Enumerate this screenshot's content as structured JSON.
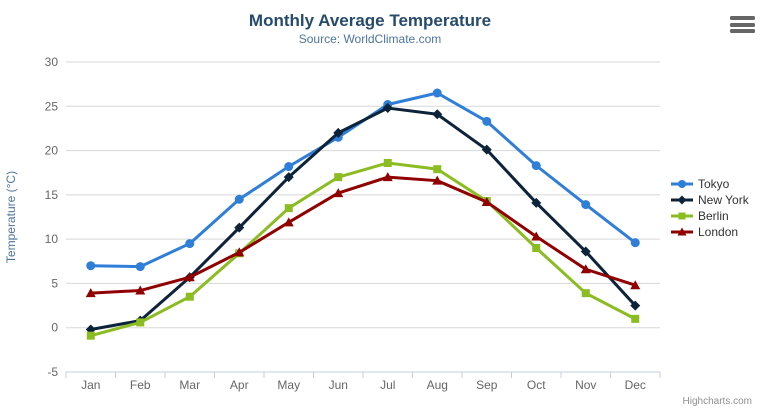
{
  "title": "Monthly Average Temperature",
  "subtitle": "Source: WorldClimate.com",
  "credits": "Highcharts.com",
  "icons": {
    "context_menu": "hamburger-menu-icon"
  },
  "colors": {
    "title": "#274b6d",
    "subtitle": "#4d759e",
    "axis_title": "#4d759e",
    "axis_label": "#666666",
    "grid": "#d8d8d8",
    "axis_line": "#c0d0e0",
    "legend_text": "#333333",
    "credits": "#909090",
    "menu": "#666666"
  },
  "chart_data": {
    "type": "line",
    "title": "Monthly Average Temperature",
    "subtitle": "Source: WorldClimate.com",
    "categories": [
      "Jan",
      "Feb",
      "Mar",
      "Apr",
      "May",
      "Jun",
      "Jul",
      "Aug",
      "Sep",
      "Oct",
      "Nov",
      "Dec"
    ],
    "xlabel": "",
    "ylabel": "Temperature (°C)",
    "ylim": [
      -5,
      30
    ],
    "yticks": [
      -5,
      0,
      5,
      10,
      15,
      20,
      25,
      30
    ],
    "grid": true,
    "legend_position": "right",
    "series": [
      {
        "name": "Tokyo",
        "color": "#2f7ed8",
        "marker": "circle",
        "values": [
          7.0,
          6.9,
          9.5,
          14.5,
          18.2,
          21.5,
          25.2,
          26.5,
          23.3,
          18.3,
          13.9,
          9.6
        ]
      },
      {
        "name": "New York",
        "color": "#0d233a",
        "marker": "diamond",
        "values": [
          -0.2,
          0.8,
          5.7,
          11.3,
          17.0,
          22.0,
          24.8,
          24.1,
          20.1,
          14.1,
          8.6,
          2.5
        ]
      },
      {
        "name": "Berlin",
        "color": "#8bbc21",
        "marker": "square",
        "values": [
          -0.9,
          0.6,
          3.5,
          8.4,
          13.5,
          17.0,
          18.6,
          17.9,
          14.3,
          9.0,
          3.9,
          1.0
        ]
      },
      {
        "name": "London",
        "color": "#910000",
        "marker": "triangle",
        "values": [
          3.9,
          4.2,
          5.7,
          8.5,
          11.9,
          15.2,
          17.0,
          16.6,
          14.2,
          10.3,
          6.6,
          4.8
        ]
      }
    ]
  }
}
